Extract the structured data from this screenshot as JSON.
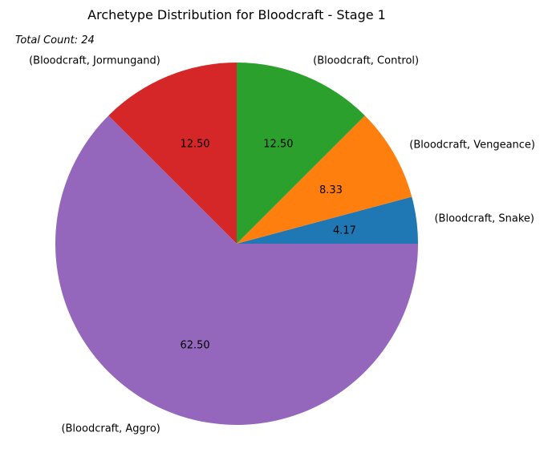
{
  "chart_data": {
    "type": "pie",
    "title": "Archetype Distribution for Bloodcraft - Stage 1",
    "annotation": "Total Count: 24",
    "labels": [
      "(Bloodcraft, Snake)",
      "(Bloodcraft, Vengeance)",
      "(Bloodcraft, Control)",
      "(Bloodcraft, Jormungand)",
      "(Bloodcraft, Aggro)"
    ],
    "values": [
      4.17,
      8.33,
      12.5,
      12.5,
      62.5
    ],
    "value_labels": [
      "4.17",
      "8.33",
      "12.50",
      "12.50",
      "62.50"
    ],
    "colors": [
      "#1f77b4",
      "#ff7f0e",
      "#2ca02c",
      "#d62728",
      "#9467bd"
    ]
  }
}
